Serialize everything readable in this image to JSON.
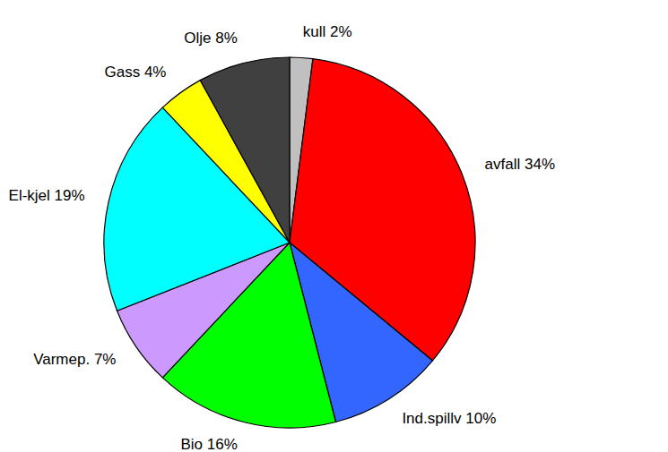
{
  "chart_data": {
    "type": "pie",
    "categories": [
      "kull",
      "avfall",
      "Ind.spillv",
      "Bio",
      "Varmep.",
      "El-kjel",
      "Gass",
      "Olje"
    ],
    "values": [
      2,
      34,
      10,
      16,
      7,
      19,
      4,
      8
    ],
    "value_labels": [
      "2%",
      "34%",
      "10%",
      "16%",
      "7%",
      "19%",
      "4%",
      "8%"
    ],
    "colors": [
      "#c0c0c0",
      "#ff0000",
      "#3366ff",
      "#00ff00",
      "#cc99ff",
      "#00ffff",
      "#ffff00",
      "#404040"
    ],
    "data_labels": true
  }
}
